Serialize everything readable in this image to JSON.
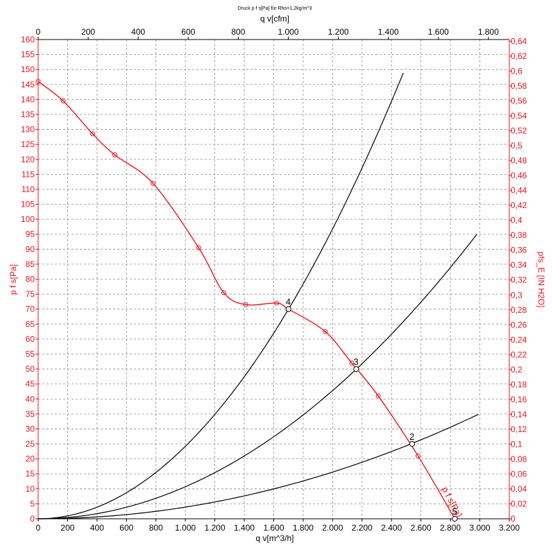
{
  "chart_data": {
    "type": "line",
    "title": "Druck p f s[Pa] für Rho=1,2kg/m^3",
    "xlabel_bottom": "q v[m^3/h]",
    "xlabel_top": "q v[cfm]",
    "ylabel_left": "p f s[Pa]",
    "ylabel_right": "pfs_E [IN H2O]",
    "curve_label": "p f s[Pa]",
    "xlim": [
      0,
      3200
    ],
    "ylim": [
      0,
      160
    ],
    "x_top_lim": [
      0,
      1883.5
    ],
    "y_right_lim": [
      0,
      0.6423
    ],
    "grid": true,
    "bottom_ticks": [
      {
        "value": 0,
        "label": "0"
      },
      {
        "value": 200,
        "label": "200"
      },
      {
        "value": 400,
        "label": "400"
      },
      {
        "value": 600,
        "label": "600"
      },
      {
        "value": 800,
        "label": "800"
      },
      {
        "value": 1000,
        "label": "1.000"
      },
      {
        "value": 1200,
        "label": "1.200"
      },
      {
        "value": 1400,
        "label": "1.400"
      },
      {
        "value": 1600,
        "label": "1.600"
      },
      {
        "value": 1800,
        "label": "1.800"
      },
      {
        "value": 2000,
        "label": "2.000"
      },
      {
        "value": 2200,
        "label": "2.200"
      },
      {
        "value": 2400,
        "label": "2.400"
      },
      {
        "value": 2600,
        "label": "2.600"
      },
      {
        "value": 2800,
        "label": "2.800"
      },
      {
        "value": 3000,
        "label": "3.000"
      },
      {
        "value": 3200,
        "label": "3.200"
      }
    ],
    "top_ticks": [
      {
        "value": 0,
        "label": "0"
      },
      {
        "value": 200,
        "label": "200"
      },
      {
        "value": 400,
        "label": "400"
      },
      {
        "value": 600,
        "label": "600"
      },
      {
        "value": 800,
        "label": "800"
      },
      {
        "value": 1000,
        "label": "1.000"
      },
      {
        "value": 1200,
        "label": "1.200"
      },
      {
        "value": 1400,
        "label": "1.400"
      },
      {
        "value": 1600,
        "label": "1.600"
      },
      {
        "value": 1800,
        "label": "1.800"
      }
    ],
    "left_ticks": [
      {
        "value": 0,
        "label": "0"
      },
      {
        "value": 5,
        "label": "5"
      },
      {
        "value": 10,
        "label": "10"
      },
      {
        "value": 15,
        "label": "15"
      },
      {
        "value": 20,
        "label": "20"
      },
      {
        "value": 25,
        "label": "25"
      },
      {
        "value": 30,
        "label": "30"
      },
      {
        "value": 35,
        "label": "35"
      },
      {
        "value": 40,
        "label": "40"
      },
      {
        "value": 45,
        "label": "45"
      },
      {
        "value": 50,
        "label": "50"
      },
      {
        "value": 55,
        "label": "55"
      },
      {
        "value": 60,
        "label": "60"
      },
      {
        "value": 65,
        "label": "65"
      },
      {
        "value": 70,
        "label": "70"
      },
      {
        "value": 75,
        "label": "75"
      },
      {
        "value": 80,
        "label": "80"
      },
      {
        "value": 85,
        "label": "85"
      },
      {
        "value": 90,
        "label": "90"
      },
      {
        "value": 95,
        "label": "95"
      },
      {
        "value": 100,
        "label": "100"
      },
      {
        "value": 105,
        "label": "105"
      },
      {
        "value": 110,
        "label": "110"
      },
      {
        "value": 115,
        "label": "115"
      },
      {
        "value": 120,
        "label": "120"
      },
      {
        "value": 125,
        "label": "125"
      },
      {
        "value": 130,
        "label": "130"
      },
      {
        "value": 135,
        "label": "135"
      },
      {
        "value": 140,
        "label": "140"
      },
      {
        "value": 145,
        "label": "145"
      },
      {
        "value": 150,
        "label": "150"
      },
      {
        "value": 155,
        "label": "155"
      },
      {
        "value": 160,
        "label": "160"
      }
    ],
    "right_ticks": [
      {
        "value": 0,
        "label": "0"
      },
      {
        "value": 0.02,
        "label": "0,02"
      },
      {
        "value": 0.04,
        "label": "0,04"
      },
      {
        "value": 0.06,
        "label": "0,06"
      },
      {
        "value": 0.08,
        "label": "0,08"
      },
      {
        "value": 0.1,
        "label": "0,1"
      },
      {
        "value": 0.12,
        "label": "0,12"
      },
      {
        "value": 0.14,
        "label": "0,14"
      },
      {
        "value": 0.16,
        "label": "0,16"
      },
      {
        "value": 0.18,
        "label": "0,18"
      },
      {
        "value": 0.2,
        "label": "0,2"
      },
      {
        "value": 0.22,
        "label": "0,22"
      },
      {
        "value": 0.24,
        "label": "0,24"
      },
      {
        "value": 0.26,
        "label": "0,26"
      },
      {
        "value": 0.28,
        "label": "0,28"
      },
      {
        "value": 0.3,
        "label": "0,3"
      },
      {
        "value": 0.32,
        "label": "0,32"
      },
      {
        "value": 0.34,
        "label": "0,34"
      },
      {
        "value": 0.36,
        "label": "0,36"
      },
      {
        "value": 0.38,
        "label": "0,38"
      },
      {
        "value": 0.4,
        "label": "0,4"
      },
      {
        "value": 0.42,
        "label": "0,42"
      },
      {
        "value": 0.44,
        "label": "0,44"
      },
      {
        "value": 0.46,
        "label": "0,46"
      },
      {
        "value": 0.48,
        "label": "0,48"
      },
      {
        "value": 0.5,
        "label": "0,5"
      },
      {
        "value": 0.52,
        "label": "0,52"
      },
      {
        "value": 0.54,
        "label": "0,54"
      },
      {
        "value": 0.56,
        "label": "0,56"
      },
      {
        "value": 0.58,
        "label": "0,58"
      },
      {
        "value": 0.6,
        "label": "0,6"
      },
      {
        "value": 0.62,
        "label": "0,62"
      },
      {
        "value": 0.64,
        "label": "0,64"
      }
    ],
    "fan_curve": {
      "color": "#e8141c",
      "points": [
        {
          "x": 0,
          "y": 146
        },
        {
          "x": 170,
          "y": 139.5
        },
        {
          "x": 370,
          "y": 128.5
        },
        {
          "x": 520,
          "y": 121.5
        },
        {
          "x": 780,
          "y": 112
        },
        {
          "x": 1090,
          "y": 90.5
        },
        {
          "x": 1260,
          "y": 75.5
        },
        {
          "x": 1410,
          "y": 71.5
        },
        {
          "x": 1620,
          "y": 72
        },
        {
          "x": 1700,
          "y": 70
        },
        {
          "x": 1950,
          "y": 62.5
        },
        {
          "x": 2130,
          "y": 52
        },
        {
          "x": 2310,
          "y": 41
        },
        {
          "x": 2580,
          "y": 21
        },
        {
          "x": 2830,
          "y": 0
        }
      ],
      "markers": [
        {
          "x": 0,
          "y": 146
        },
        {
          "x": 170,
          "y": 139.5
        },
        {
          "x": 370,
          "y": 128.5
        },
        {
          "x": 520,
          "y": 121.5
        },
        {
          "x": 780,
          "y": 112
        },
        {
          "x": 1090,
          "y": 90.5
        },
        {
          "x": 1260,
          "y": 75.5
        },
        {
          "x": 1410,
          "y": 71.5
        },
        {
          "x": 1620,
          "y": 72
        },
        {
          "x": 1950,
          "y": 62.5
        },
        {
          "x": 2130,
          "y": 52
        },
        {
          "x": 2310,
          "y": 41
        },
        {
          "x": 2580,
          "y": 21
        },
        {
          "x": 2830,
          "y": 0
        }
      ]
    },
    "system_curves": [
      {
        "color": "#000000",
        "k": 2.42e-05,
        "x_end": 2480
      },
      {
        "color": "#000000",
        "k": 1.07e-05,
        "x_end": 2980
      },
      {
        "color": "#000000",
        "k": 3.9e-06,
        "x_end": 2990
      }
    ],
    "operating_points": [
      {
        "label": "2",
        "x": 2540,
        "y": 25
      },
      {
        "label": "3",
        "x": 2160,
        "y": 50
      },
      {
        "label": "4",
        "x": 1700,
        "y": 70
      },
      {
        "label": "5",
        "x": 2830,
        "y": 0
      }
    ]
  }
}
